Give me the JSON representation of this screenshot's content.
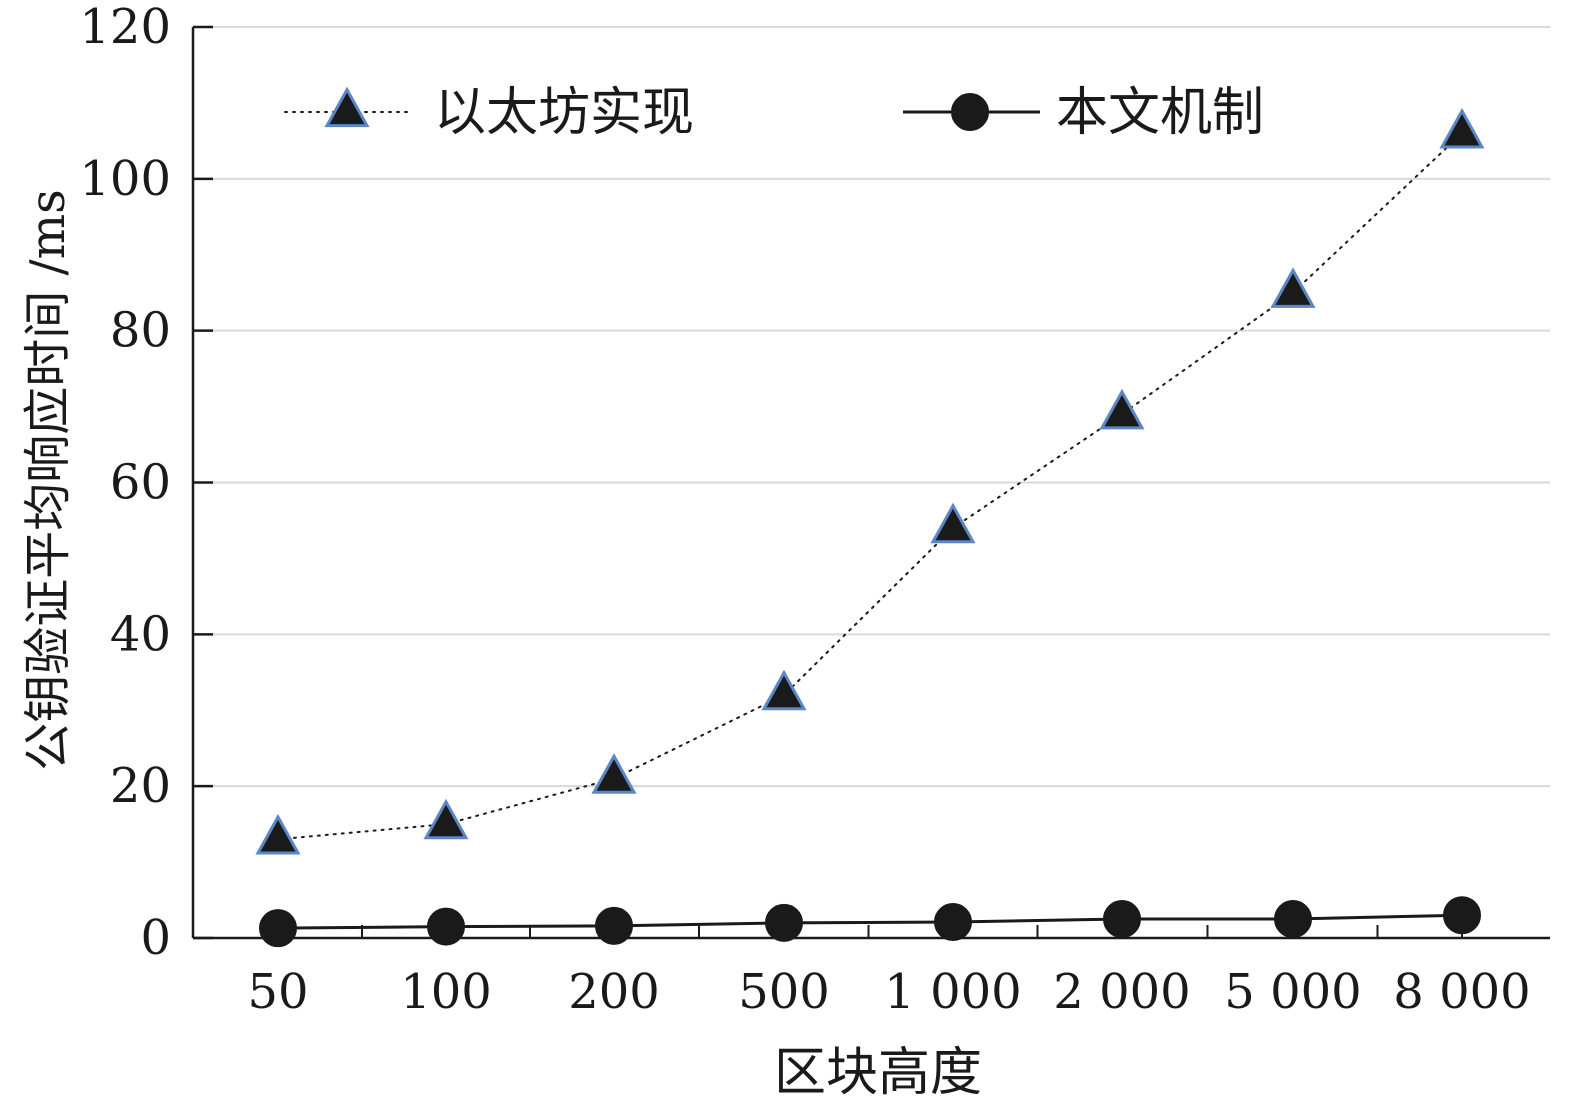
{
  "chart_data": {
    "type": "line",
    "categories": [
      "50",
      "100",
      "200",
      "500",
      "1 000",
      "2 000",
      "5 000",
      "8 000"
    ],
    "xlabel": "区块高度",
    "ylabel": "公钥验证平均响应时间 /ms",
    "ylim": [
      0,
      120
    ],
    "yticks": [
      0,
      20,
      40,
      60,
      80,
      100,
      120
    ],
    "grid": "horizontal",
    "legend_position": "top",
    "series": [
      {
        "name": "以太坊实现",
        "marker": "triangle",
        "line_style": "dotted",
        "marker_fill": "#1a1a1a",
        "marker_edge": "#5b87c5",
        "values": [
          13,
          15,
          21,
          32,
          54,
          69,
          85,
          106
        ]
      },
      {
        "name": "本文机制",
        "marker": "circle",
        "line_style": "solid",
        "marker_fill": "#1a1a1a",
        "marker_edge": "#1a1a1a",
        "values": [
          1.3,
          1.5,
          1.6,
          2.0,
          2.1,
          2.5,
          2.5,
          3.0
        ]
      }
    ]
  }
}
